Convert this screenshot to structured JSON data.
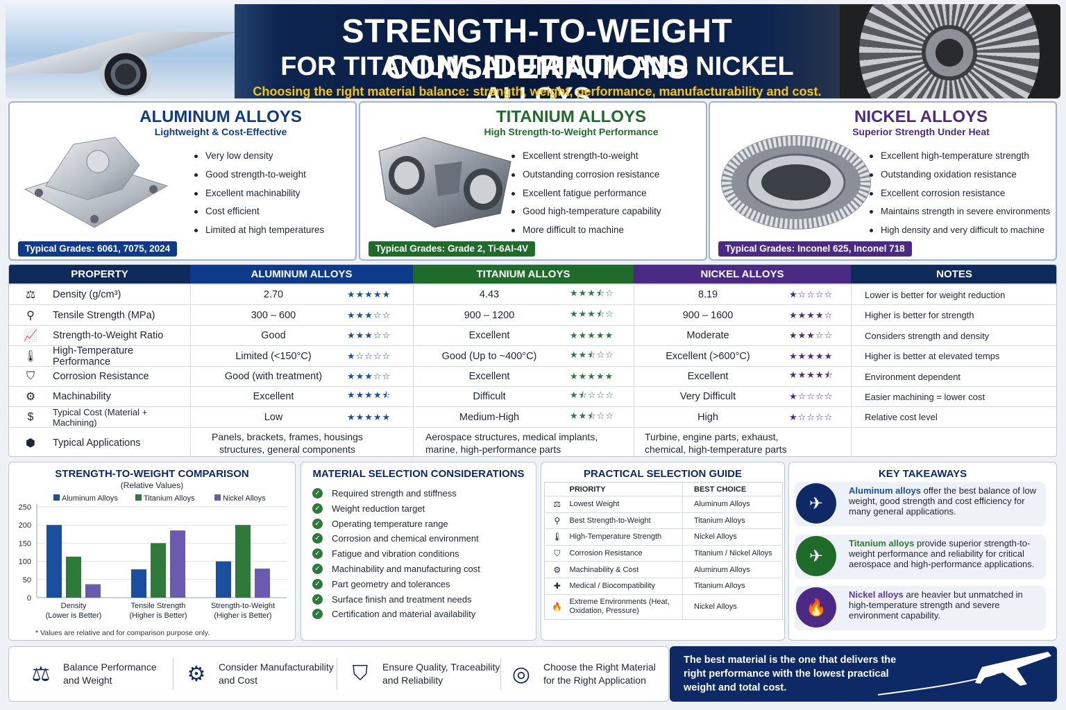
{
  "header": {
    "title_line1": "STRENGTH-TO-WEIGHT CONSIDERATIONS",
    "title_line2": "FOR TITANIUM, ALUMINUM AND NICKEL ALLOYS",
    "subtitle": "Choosing the right material balance: strength, weight, performance, manufacturability and cost."
  },
  "cards": [
    {
      "title": "ALUMINUM ALLOYS",
      "subtitle": "Lightweight & Cost-Effective",
      "color": "#0d3a8a",
      "bullets": [
        "Very low density",
        "Good strength-to-weight",
        "Excellent machinability",
        "Cost efficient",
        "Limited at high temperatures"
      ],
      "grades": "Typical Grades: 6061, 7075, 2024"
    },
    {
      "title": "TITANIUM ALLOYS",
      "subtitle": "High Strength-to-Weight Performance",
      "color": "#1f6b2a",
      "bullets": [
        "Excellent strength-to-weight",
        "Outstanding corrosion resistance",
        "Excellent fatigue performance",
        "Good high-temperature capability",
        "More difficult to machine"
      ],
      "grades": "Typical Grades: Grade 2, Ti-6Al-4V"
    },
    {
      "title": "NICKEL ALLOYS",
      "subtitle": "Superior Strength Under Heat",
      "color": "#4b2a86",
      "bullets": [
        "Excellent high-temperature strength",
        "Outstanding oxidation resistance",
        "Excellent corrosion resistance",
        "Maintains strength in severe environments",
        "High density and very difficult to machine"
      ],
      "grades": "Typical Grades: Inconel 625, Inconel 718"
    }
  ],
  "table": {
    "headers": [
      "PROPERTY",
      "ALUMINUM ALLOYS",
      "TITANIUM ALLOYS",
      "NICKEL ALLOYS",
      "NOTES"
    ],
    "rows": [
      {
        "icon": "scale-icon",
        "glyph": "⚖",
        "property": "Density (g/cm³)",
        "al": "2.70",
        "al_stars": "★★★★★",
        "ti": "4.43",
        "ti_stars": "★★★⯪☆",
        "ni": "8.19",
        "ni_stars": "★☆☆☆☆",
        "note": "Lower is better for weight reduction"
      },
      {
        "icon": "weight-icon",
        "glyph": "⚲",
        "property": "Tensile Strength (MPa)",
        "al": "300 – 600",
        "al_stars": "★★★☆☆",
        "ti": "900 – 1200",
        "ti_stars": "★★★⯪☆",
        "ni": "900 – 1600",
        "ni_stars": "★★★★☆",
        "note": "Higher is better for strength"
      },
      {
        "icon": "trend-chart-icon",
        "glyph": "📈",
        "property": "Strength-to-Weight Ratio",
        "al": "Good",
        "al_stars": "★★★☆☆",
        "ti": "Excellent",
        "ti_stars": "★★★★★",
        "ni": "Moderate",
        "ni_stars": "★★★☆☆",
        "note": "Considers strength and density"
      },
      {
        "icon": "thermometer-icon",
        "glyph": "🌡",
        "property": "High-Temperature Performance",
        "al": "Limited (<150°C)",
        "al_stars": "★☆☆☆☆",
        "ti": "Good (Up to ~400°C)",
        "ti_stars": "★★⯪☆☆",
        "ni": "Excellent (>600°C)",
        "ni_stars": "★★★★★",
        "note": "Higher is better at elevated temps"
      },
      {
        "icon": "shield-icon",
        "glyph": "⛉",
        "property": "Corrosion Resistance",
        "al": "Good (with treatment)",
        "al_stars": "★★★☆☆",
        "ti": "Excellent",
        "ti_stars": "★★★★★",
        "ni": "Excellent",
        "ni_stars": "★★★★⯪",
        "note": "Environment dependent"
      },
      {
        "icon": "gear-icon",
        "glyph": "⚙",
        "property": "Machinability",
        "al": "Excellent",
        "al_stars": "★★★★⯪",
        "ti": "Difficult",
        "ti_stars": "★⯪☆☆☆",
        "ni": "Very Difficult",
        "ni_stars": "★☆☆☆☆",
        "note": "Easier machining = lower cost"
      },
      {
        "icon": "dollar-icon",
        "glyph": "$",
        "property": "Typical Cost (Material + Machining)",
        "al": "Low",
        "al_stars": "★★★★★",
        "ti": "Medium-High",
        "ti_stars": "★★⯪☆☆",
        "ni": "High",
        "ni_stars": "★☆☆☆☆",
        "note": "Relative cost level"
      },
      {
        "icon": "cube-icon",
        "glyph": "⬢",
        "property": "Typical Applications",
        "al": "Panels, brackets, frames, housings structures, general components",
        "al_stars": "",
        "ti": "Aerospace structures, medical implants, marine, high-performance parts",
        "ti_stars": "",
        "ni": "Turbine, engine parts, exhaust, chemical, high-temperature parts",
        "ni_stars": "",
        "note": ""
      }
    ]
  },
  "chart_panel": {
    "title": "STRENGTH-TO-WEIGHT COMPARISON",
    "subtitle": "(Relative Values)",
    "footnote": "* Values are relative and for comparison purpose only."
  },
  "chart_data": {
    "type": "bar",
    "title": "STRENGTH-TO-WEIGHT COMPARISON",
    "subtitle": "(Relative Values)",
    "categories": [
      "Density\n(Lower is Better)",
      "Tensile Strength\n(Higher is Better)",
      "Strength-to-Weight\n(Higher is Better)"
    ],
    "series": [
      {
        "name": "Aluminum Alloys",
        "color": "#1a4fa0",
        "values": [
          200,
          78,
          100
        ]
      },
      {
        "name": "Titanium Alloys",
        "color": "#2f7a3a",
        "values": [
          113,
          150,
          200
        ]
      },
      {
        "name": "Nickel Alloys",
        "color": "#6b5bb0",
        "values": [
          37,
          185,
          80
        ]
      }
    ],
    "yticks": [
      0,
      50,
      100,
      150,
      200,
      250
    ],
    "ylim": [
      0,
      250
    ],
    "grid": true,
    "legend": "top"
  },
  "considerations": {
    "title": "MATERIAL SELECTION CONSIDERATIONS",
    "items": [
      "Required strength and stiffness",
      "Weight reduction target",
      "Operating temperature range",
      "Corrosion and chemical environment",
      "Fatigue and vibration conditions",
      "Machinability and manufacturing cost",
      "Part geometry and tolerances",
      "Surface finish and treatment needs",
      "Certification and material availability"
    ]
  },
  "guide": {
    "title": "PRACTICAL SELECTION GUIDE",
    "col_priority": "PRIORITY",
    "col_choice": "BEST CHOICE",
    "rows": [
      {
        "icon": "scale-icon",
        "glyph": "⚖",
        "priority": "Lowest Weight",
        "choice": "Aluminum Alloys"
      },
      {
        "icon": "weight-icon",
        "glyph": "⚲",
        "priority": "Best Strength-to-Weight",
        "choice": "Titanium Alloys"
      },
      {
        "icon": "thermometer-icon",
        "glyph": "🌡",
        "priority": "High-Temperature Strength",
        "choice": "Nickel Alloys"
      },
      {
        "icon": "shield-icon",
        "glyph": "⛉",
        "priority": "Corrosion Resistance",
        "choice": "Titanium / Nickel Alloys"
      },
      {
        "icon": "gear-icon",
        "glyph": "⚙",
        "priority": "Machinability & Cost",
        "choice": "Aluminum Alloys"
      },
      {
        "icon": "medical-icon",
        "glyph": "✚",
        "priority": "Medical / Biocompatibility",
        "choice": "Titanium Alloys"
      },
      {
        "icon": "flame-icon",
        "glyph": "🔥",
        "priority": "Extreme Environments (Heat, Oxidation, Pressure)",
        "choice": "Nickel Alloys"
      }
    ]
  },
  "takeaways": {
    "title": "KEY TAKEAWAYS",
    "items": [
      {
        "icon": "plane-icon",
        "glyph": "✈",
        "color": "#0d2a66",
        "hl_color": "#1a4fa0",
        "highlight": "Aluminum alloys",
        "text": " offer the best balance of low weight, good strength and cost efficiency for many general applications."
      },
      {
        "icon": "plane-icon",
        "glyph": "✈",
        "color": "#1f6b2a",
        "hl_color": "#2f7a3a",
        "highlight": "Titanium alloys",
        "text": " provide superior strength-to-weight performance and reliability for critical aerospace and high-performance applications."
      },
      {
        "icon": "flame-icon",
        "glyph": "🔥",
        "color": "#4b2a86",
        "hl_color": "#5a3aa0",
        "highlight": "Nickel alloys",
        "text": " are heavier but unmatched in high-temperature strength and severe environment capability."
      }
    ]
  },
  "footer": {
    "items": [
      {
        "icon": "scale-icon",
        "glyph": "⚖",
        "text": "Balance Performance and Weight"
      },
      {
        "icon": "gear-icon",
        "glyph": "⚙",
        "text": "Consider Manufacturability and Cost"
      },
      {
        "icon": "shield-check-icon",
        "glyph": "⛉",
        "text": "Ensure Quality, Traceability and Reliability"
      },
      {
        "icon": "target-icon",
        "glyph": "◎",
        "text": "Choose the Right Material for the Right Application"
      }
    ],
    "banner": "The best material is the one that delivers the right performance with the lowest practical weight and total cost."
  }
}
